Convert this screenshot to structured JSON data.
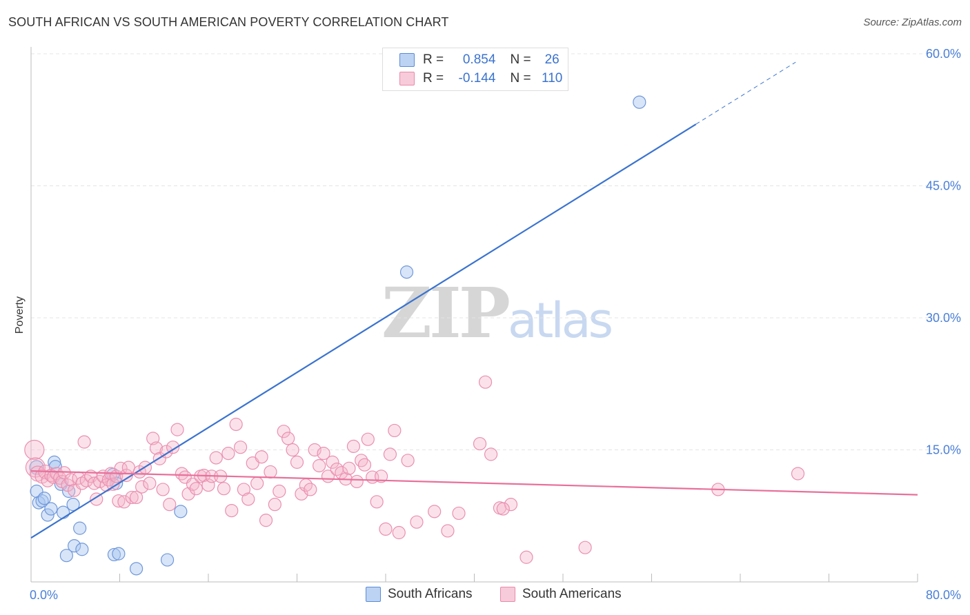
{
  "title": "SOUTH AFRICAN VS SOUTH AMERICAN POVERTY CORRELATION CHART",
  "source": "Source: ZipAtlas.com",
  "watermark": {
    "zip": "ZIP",
    "atlas": "atlas"
  },
  "colors": {
    "blue": "#3a73cf",
    "blue_fill": "#a9c6ef",
    "pink": "#e8709a",
    "pink_fill": "#f4b6cb",
    "grid": "#e4e4e4",
    "tick_label": "#4a7fd6"
  },
  "legend": {
    "blue": {
      "r_label": "R =",
      "r_value": "0.854",
      "n_label": "N =",
      "n_value": "26"
    },
    "pink": {
      "r_label": "R =",
      "r_value": "-0.144",
      "n_label": "N =",
      "n_value": "110"
    }
  },
  "series_labels": {
    "blue": "South Africans",
    "pink": "South Americans"
  },
  "chart_data": {
    "type": "scatter",
    "title": "SOUTH AFRICAN VS SOUTH AMERICAN POVERTY CORRELATION CHART",
    "xlabel": "",
    "ylabel": "Poverty",
    "xlim": [
      0,
      80
    ],
    "ylim": [
      0,
      60
    ],
    "x_tick_labels": [
      {
        "value": 0,
        "label": "0.0%"
      },
      {
        "value": 80,
        "label": "80.0%"
      }
    ],
    "y_tick_labels": [
      {
        "value": 15,
        "label": "15.0%"
      },
      {
        "value": 30,
        "label": "30.0%"
      },
      {
        "value": 45,
        "label": "45.0%"
      },
      {
        "value": 60,
        "label": "60.0%"
      }
    ],
    "series": [
      {
        "name": "South Africans",
        "color": "#3a73cf",
        "R": 0.854,
        "N": 26,
        "trend": {
          "x0": 0,
          "y0": 5.0,
          "x1": 60,
          "y1": 52.0,
          "dash_to_x": 69
        },
        "points": [
          [
            0.5,
            13.0,
            10
          ],
          [
            0.5,
            10.3,
            9
          ],
          [
            0.7,
            9.0,
            9
          ],
          [
            1.0,
            9.2,
            9
          ],
          [
            1.2,
            9.5,
            9
          ],
          [
            1.5,
            7.6,
            9
          ],
          [
            1.8,
            8.3,
            9
          ],
          [
            2.1,
            13.6,
            9
          ],
          [
            2.2,
            13.1,
            9
          ],
          [
            2.7,
            11.1,
            9
          ],
          [
            2.9,
            7.9,
            9
          ],
          [
            3.2,
            3.0,
            9
          ],
          [
            3.4,
            10.3,
            9
          ],
          [
            3.8,
            8.8,
            9
          ],
          [
            3.9,
            4.1,
            9
          ],
          [
            4.4,
            6.1,
            9
          ],
          [
            4.6,
            3.7,
            9
          ],
          [
            7.4,
            12.2,
            9
          ],
          [
            7.5,
            3.1,
            9
          ],
          [
            7.7,
            11.2,
            9
          ],
          [
            7.9,
            3.2,
            9
          ],
          [
            9.5,
            1.5,
            9
          ],
          [
            12.3,
            2.5,
            9
          ],
          [
            13.5,
            8.0,
            9
          ],
          [
            33.9,
            35.2,
            9
          ],
          [
            54.9,
            54.5,
            9
          ]
        ]
      },
      {
        "name": "South Americans",
        "color": "#e8709a",
        "R": -0.144,
        "N": 110,
        "trend": {
          "x0": 0,
          "y0": 12.6,
          "x1": 80,
          "y1": 9.9
        },
        "points": [
          [
            0.3,
            15.0,
            14
          ],
          [
            0.4,
            13.0,
            14
          ],
          [
            0.6,
            12.3,
            11
          ],
          [
            1.0,
            12.0,
            10
          ],
          [
            1.3,
            12.5,
            10
          ],
          [
            1.5,
            11.5,
            9
          ],
          [
            1.8,
            12.1,
            9
          ],
          [
            2.0,
            11.9,
            9
          ],
          [
            2.3,
            12.3,
            9
          ],
          [
            2.6,
            11.8,
            9
          ],
          [
            2.8,
            11.4,
            9
          ],
          [
            3.0,
            12.4,
            9
          ],
          [
            3.3,
            11.0,
            9
          ],
          [
            3.6,
            11.6,
            9
          ],
          [
            3.9,
            10.4,
            9
          ],
          [
            4.3,
            11.8,
            9
          ],
          [
            4.6,
            11.2,
            9
          ],
          [
            4.8,
            15.9,
            9
          ],
          [
            5.0,
            11.5,
            9
          ],
          [
            5.4,
            12.0,
            9
          ],
          [
            5.7,
            11.2,
            9
          ],
          [
            5.9,
            9.4,
            9
          ],
          [
            6.2,
            11.4,
            9
          ],
          [
            6.5,
            12.0,
            9
          ],
          [
            6.8,
            11.0,
            9
          ],
          [
            7.0,
            11.6,
            9
          ],
          [
            7.2,
            12.3,
            9
          ],
          [
            7.4,
            11.1,
            9
          ],
          [
            7.7,
            12.0,
            9
          ],
          [
            7.9,
            9.2,
            9
          ],
          [
            8.1,
            12.9,
            9
          ],
          [
            8.4,
            9.1,
            9
          ],
          [
            8.6,
            12.1,
            9
          ],
          [
            8.8,
            13.0,
            9
          ],
          [
            9.1,
            9.6,
            9
          ],
          [
            9.5,
            9.6,
            9
          ],
          [
            9.8,
            12.5,
            9
          ],
          [
            10.0,
            10.8,
            9
          ],
          [
            10.3,
            13.0,
            9
          ],
          [
            10.7,
            11.2,
            9
          ],
          [
            11.0,
            16.3,
            9
          ],
          [
            11.3,
            15.2,
            9
          ],
          [
            11.6,
            14.0,
            9
          ],
          [
            11.9,
            10.5,
            9
          ],
          [
            12.2,
            14.8,
            9
          ],
          [
            12.5,
            8.8,
            9
          ],
          [
            12.8,
            15.3,
            9
          ],
          [
            13.2,
            17.3,
            9
          ],
          [
            13.6,
            12.3,
            9
          ],
          [
            13.9,
            11.9,
            9
          ],
          [
            14.2,
            10.0,
            9
          ],
          [
            14.6,
            11.1,
            9
          ],
          [
            14.9,
            10.6,
            9
          ],
          [
            15.3,
            12.0,
            9
          ],
          [
            15.6,
            12.1,
            9
          ],
          [
            16.0,
            11.0,
            9
          ],
          [
            16.3,
            12.0,
            9
          ],
          [
            16.7,
            14.1,
            9
          ],
          [
            17.1,
            12.0,
            9
          ],
          [
            17.4,
            10.6,
            9
          ],
          [
            17.8,
            14.6,
            9
          ],
          [
            18.1,
            8.1,
            9
          ],
          [
            18.5,
            17.9,
            9
          ],
          [
            18.9,
            15.3,
            9
          ],
          [
            19.2,
            10.5,
            9
          ],
          [
            19.6,
            9.4,
            9
          ],
          [
            20.0,
            13.5,
            9
          ],
          [
            20.4,
            11.2,
            9
          ],
          [
            20.8,
            14.2,
            9
          ],
          [
            21.2,
            7.0,
            9
          ],
          [
            21.6,
            12.5,
            9
          ],
          [
            22.0,
            8.8,
            9
          ],
          [
            22.4,
            10.3,
            9
          ],
          [
            22.8,
            17.1,
            9
          ],
          [
            23.2,
            16.3,
            9
          ],
          [
            23.6,
            15.0,
            9
          ],
          [
            24.0,
            13.6,
            9
          ],
          [
            24.4,
            10.0,
            9
          ],
          [
            24.8,
            11.0,
            9
          ],
          [
            25.2,
            10.5,
            9
          ],
          [
            25.6,
            15.0,
            9
          ],
          [
            26.0,
            13.2,
            9
          ],
          [
            26.4,
            14.6,
            9
          ],
          [
            26.8,
            12.0,
            9
          ],
          [
            27.2,
            13.6,
            9
          ],
          [
            27.6,
            12.8,
            9
          ],
          [
            28.0,
            12.4,
            9
          ],
          [
            28.4,
            11.7,
            9
          ],
          [
            28.7,
            12.9,
            9
          ],
          [
            29.1,
            15.4,
            9
          ],
          [
            29.4,
            11.4,
            9
          ],
          [
            29.8,
            13.8,
            9
          ],
          [
            30.1,
            13.3,
            9
          ],
          [
            30.4,
            16.2,
            9
          ],
          [
            30.8,
            11.9,
            9
          ],
          [
            31.2,
            9.1,
            9
          ],
          [
            31.6,
            12.0,
            9
          ],
          [
            32.0,
            6.0,
            9
          ],
          [
            32.4,
            14.5,
            9
          ],
          [
            32.8,
            17.2,
            9
          ],
          [
            33.2,
            5.6,
            9
          ],
          [
            34.0,
            13.8,
            9
          ],
          [
            34.8,
            6.8,
            9
          ],
          [
            36.4,
            8.0,
            9
          ],
          [
            37.6,
            5.8,
            9
          ],
          [
            38.6,
            7.8,
            9
          ],
          [
            40.5,
            15.7,
            9
          ],
          [
            41.0,
            22.7,
            9
          ],
          [
            41.5,
            14.5,
            9
          ],
          [
            42.3,
            8.4,
            9
          ],
          [
            43.3,
            8.8,
            9
          ],
          [
            42.6,
            8.3,
            9
          ],
          [
            44.7,
            2.8,
            9
          ],
          [
            50.0,
            3.9,
            9
          ],
          [
            62.0,
            10.5,
            9
          ],
          [
            69.2,
            12.3,
            9
          ]
        ]
      }
    ]
  }
}
